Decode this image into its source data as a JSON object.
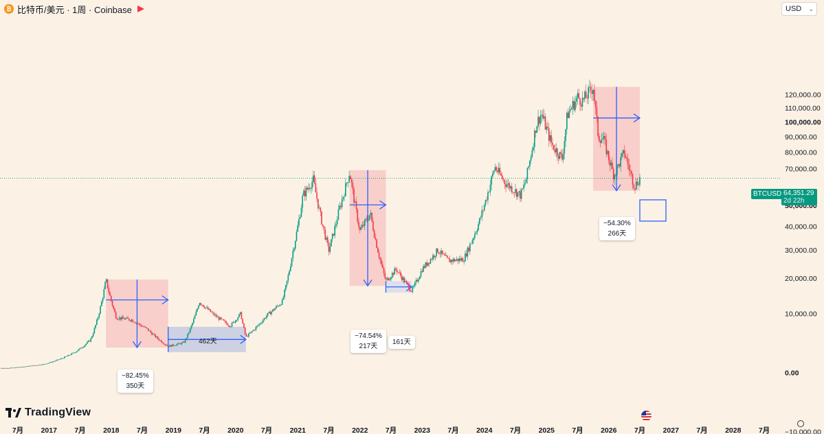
{
  "header": {
    "coin_symbol": "₿",
    "title": "比特币/美元 · 1周 · Coinbase",
    "currency": "USD"
  },
  "brand": {
    "name": "TradingView"
  },
  "price_tag": {
    "symbol": "BTCUSD",
    "price": "64,351.29",
    "countdown": "2d 22h",
    "value": 64351.29
  },
  "colors": {
    "background": "#fbf2e5",
    "up": "#089981",
    "down": "#f23645",
    "arrow": "#2962ff",
    "zone": "#f7c3c0",
    "tag": "#089981"
  },
  "annotations": [
    {
      "pct": "−82.45%",
      "days": "350天"
    },
    {
      "pct": "462天"
    },
    {
      "pct": "−74.54%",
      "days": "217天"
    },
    {
      "pct": "161天"
    },
    {
      "pct": "−54.30%",
      "days": "266天"
    }
  ],
  "chart_data": {
    "type": "candlestick",
    "title": "",
    "xlabel": "",
    "ylabel": "",
    "y_scale": "symlog",
    "ylim": [
      -12000,
      128000
    ],
    "y_ticks": [
      {
        "value": 120000,
        "label": "120,000.00"
      },
      {
        "value": 110000,
        "label": "110,000.00"
      },
      {
        "value": 100000,
        "label": "100,000.00"
      },
      {
        "value": 90000,
        "label": "90,000.00"
      },
      {
        "value": 80000,
        "label": "80,000.00"
      },
      {
        "value": 70000,
        "label": "70,000.00"
      },
      {
        "value": 50000,
        "label": "50,000.00"
      },
      {
        "value": 40000,
        "label": "40,000.00"
      },
      {
        "value": 30000,
        "label": "30,000.00"
      },
      {
        "value": 20000,
        "label": "20,000.00"
      },
      {
        "value": 10000,
        "label": "10,000.00"
      },
      {
        "value": 0,
        "label": "0.00"
      },
      {
        "value": -10000,
        "label": "−10,000.00"
      }
    ],
    "x_ticks": [
      "7月",
      "2017",
      "7月",
      "2018",
      "7月",
      "2019",
      "7月",
      "2020",
      "7月",
      "2021",
      "7月",
      "2022",
      "7月",
      "2023",
      "7月",
      "2024",
      "7月",
      "2025",
      "7月",
      "2026",
      "7月",
      "2027",
      "7月",
      "2028",
      "7月"
    ],
    "series": [
      {
        "values": [
          {
            "date": "2016-05",
            "price": 450
          },
          {
            "date": "2016-12",
            "price": 900
          },
          {
            "date": "2017-06",
            "price": 2500
          },
          {
            "date": "2017-09",
            "price": 4500
          },
          {
            "date": "2017-12",
            "price": 19500
          },
          {
            "date": "2018-02",
            "price": 9000
          },
          {
            "date": "2018-05",
            "price": 8500
          },
          {
            "date": "2018-08",
            "price": 6500
          },
          {
            "date": "2018-11",
            "price": 4000
          },
          {
            "date": "2018-12",
            "price": 3400
          },
          {
            "date": "2019-03",
            "price": 4000
          },
          {
            "date": "2019-06",
            "price": 13000
          },
          {
            "date": "2019-09",
            "price": 9500
          },
          {
            "date": "2019-12",
            "price": 7200
          },
          {
            "date": "2020-02",
            "price": 10000
          },
          {
            "date": "2020-03",
            "price": 5000
          },
          {
            "date": "2020-07",
            "price": 9500
          },
          {
            "date": "2020-10",
            "price": 13000
          },
          {
            "date": "2020-12",
            "price": 29000
          },
          {
            "date": "2021-02",
            "price": 55000
          },
          {
            "date": "2021-04",
            "price": 63500
          },
          {
            "date": "2021-07",
            "price": 30000
          },
          {
            "date": "2021-09",
            "price": 48000
          },
          {
            "date": "2021-11",
            "price": 68000
          },
          {
            "date": "2022-01",
            "price": 38000
          },
          {
            "date": "2022-03",
            "price": 46000
          },
          {
            "date": "2022-06",
            "price": 19000
          },
          {
            "date": "2022-08",
            "price": 23000
          },
          {
            "date": "2022-11",
            "price": 16000
          },
          {
            "date": "2023-01",
            "price": 23000
          },
          {
            "date": "2023-04",
            "price": 30000
          },
          {
            "date": "2023-06",
            "price": 26000
          },
          {
            "date": "2023-09",
            "price": 26500
          },
          {
            "date": "2023-12",
            "price": 42000
          },
          {
            "date": "2024-03",
            "price": 71000
          },
          {
            "date": "2024-05",
            "price": 62000
          },
          {
            "date": "2024-08",
            "price": 55000
          },
          {
            "date": "2024-09",
            "price": 63000
          },
          {
            "date": "2024-11",
            "price": 98000
          },
          {
            "date": "2024-12",
            "price": 106000
          },
          {
            "date": "2025-02",
            "price": 85000
          },
          {
            "date": "2025-04",
            "price": 76000
          },
          {
            "date": "2025-05",
            "price": 105000
          },
          {
            "date": "2025-07",
            "price": 118000
          },
          {
            "date": "2025-08",
            "price": 115000
          },
          {
            "date": "2025-10",
            "price": 126000
          },
          {
            "date": "2025-11",
            "price": 90000
          },
          {
            "date": "2025-12",
            "price": 88000
          },
          {
            "date": "2026-02",
            "price": 66000
          },
          {
            "date": "2026-04",
            "price": 80000
          },
          {
            "date": "2026-06",
            "price": 60000
          },
          {
            "date": "2026-07",
            "price": 64351
          }
        ]
      }
    ],
    "drawdowns": [
      {
        "start": "2017-12",
        "end": "2018-12",
        "high": 19500,
        "low": 3200,
        "label": "−82.45%",
        "days": "350天"
      },
      {
        "start": "2021-11",
        "end": "2022-06",
        "high": 69000,
        "low": 17500,
        "label": "−74.54%",
        "days": "217天"
      },
      {
        "start": "2025-10",
        "end": "2026-07",
        "high": 126000,
        "low": 57500,
        "label": "−54.30%",
        "days": "266天"
      }
    ],
    "ranges": [
      {
        "start": "2018-12",
        "end": "2020-03",
        "label": "462天"
      },
      {
        "start": "2022-06",
        "end": "2022-11",
        "label": "161天"
      }
    ],
    "last_price": 64351.29,
    "grid": false,
    "legend": "none"
  }
}
